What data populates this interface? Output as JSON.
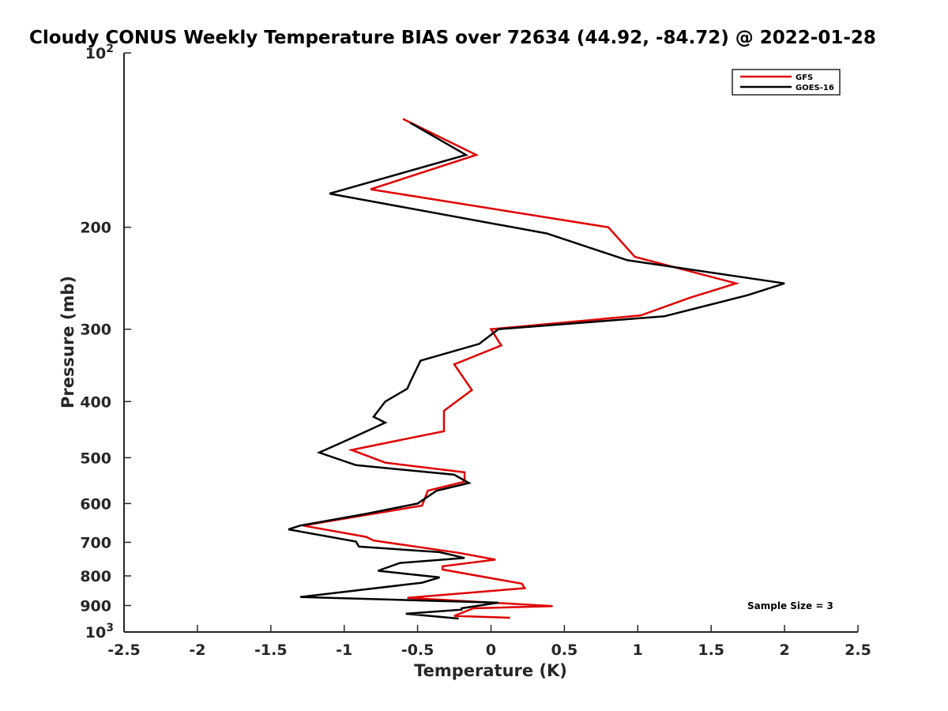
{
  "chart_data": {
    "type": "line",
    "title": "Cloudy CONUS Weekly Temperature BIAS over 72634 (44.92, -84.72) @ 2022-01-28",
    "xlabel": "Temperature (K)",
    "ylabel": "Pressure (mb)",
    "xlim": [
      -2.5,
      2.5
    ],
    "ylim": [
      100,
      1000
    ],
    "y_scale": "log",
    "y_reversed": true,
    "grid": false,
    "x_ticks": [
      "-2.5",
      "-2",
      "-1.5",
      "-1",
      "-0.5",
      "0",
      "0.5",
      "1",
      "1.5",
      "2",
      "2.5"
    ],
    "y_ticks": [
      {
        "value": 100,
        "base": "10",
        "exp": "2"
      },
      {
        "value": 200,
        "label": "200"
      },
      {
        "value": 300,
        "label": "300"
      },
      {
        "value": 400,
        "label": "400"
      },
      {
        "value": 500,
        "label": "500"
      },
      {
        "value": 600,
        "label": "600"
      },
      {
        "value": 700,
        "label": "700"
      },
      {
        "value": 800,
        "label": "800"
      },
      {
        "value": 900,
        "label": "900"
      },
      {
        "value": 1000,
        "base": "10",
        "exp": "3"
      }
    ],
    "legend": {
      "position": "top-right"
    },
    "annotation": "Sample Size = 3",
    "series": [
      {
        "name": "GFS",
        "color": "#e00000",
        "points": [
          [
            -0.6,
            130
          ],
          [
            -0.1,
            150
          ],
          [
            -0.82,
            172
          ],
          [
            0.8,
            200
          ],
          [
            0.98,
            225
          ],
          [
            1.67,
            250
          ],
          [
            1.35,
            265
          ],
          [
            1.02,
            284
          ],
          [
            0.0,
            300
          ],
          [
            0.07,
            320
          ],
          [
            -0.25,
            345
          ],
          [
            -0.13,
            382
          ],
          [
            -0.32,
            415
          ],
          [
            -0.32,
            450
          ],
          [
            -0.95,
            485
          ],
          [
            -0.72,
            510
          ],
          [
            -0.18,
            530
          ],
          [
            -0.18,
            550
          ],
          [
            -0.43,
            570
          ],
          [
            -0.47,
            605
          ],
          [
            -1.28,
            655
          ],
          [
            -0.85,
            685
          ],
          [
            -0.8,
            695
          ],
          [
            -0.22,
            730
          ],
          [
            0.03,
            750
          ],
          [
            -0.33,
            770
          ],
          [
            -0.33,
            780
          ],
          [
            0.21,
            825
          ],
          [
            0.23,
            840
          ],
          [
            -0.57,
            873
          ],
          [
            0.42,
            902
          ],
          [
            -0.12,
            910
          ],
          [
            -0.25,
            938
          ],
          [
            0.13,
            945
          ]
        ]
      },
      {
        "name": "GOES-16",
        "color": "#000000",
        "points": [
          [
            -0.55,
            132
          ],
          [
            -0.17,
            150
          ],
          [
            -1.1,
            175
          ],
          [
            0.38,
            205
          ],
          [
            0.93,
            228
          ],
          [
            2.0,
            250
          ],
          [
            1.75,
            262
          ],
          [
            1.18,
            285
          ],
          [
            0.05,
            300
          ],
          [
            -0.08,
            318
          ],
          [
            -0.48,
            340
          ],
          [
            -0.55,
            370
          ],
          [
            -0.57,
            380
          ],
          [
            -0.72,
            400
          ],
          [
            -0.8,
            425
          ],
          [
            -0.72,
            435
          ],
          [
            -0.97,
            465
          ],
          [
            -1.17,
            490
          ],
          [
            -0.92,
            515
          ],
          [
            -0.25,
            535
          ],
          [
            -0.15,
            553
          ],
          [
            -0.37,
            570
          ],
          [
            -0.5,
            600
          ],
          [
            -0.85,
            625
          ],
          [
            -1.3,
            655
          ],
          [
            -1.38,
            665
          ],
          [
            -0.92,
            698
          ],
          [
            -0.9,
            712
          ],
          [
            -0.35,
            728
          ],
          [
            -0.18,
            745
          ],
          [
            -0.62,
            760
          ],
          [
            -0.77,
            784
          ],
          [
            -0.35,
            805
          ],
          [
            -0.47,
            822
          ],
          [
            -1.3,
            870
          ],
          [
            0.05,
            890
          ],
          [
            -0.2,
            910
          ],
          [
            -0.2,
            915
          ],
          [
            -0.58,
            930
          ],
          [
            -0.22,
            948
          ]
        ]
      }
    ]
  }
}
